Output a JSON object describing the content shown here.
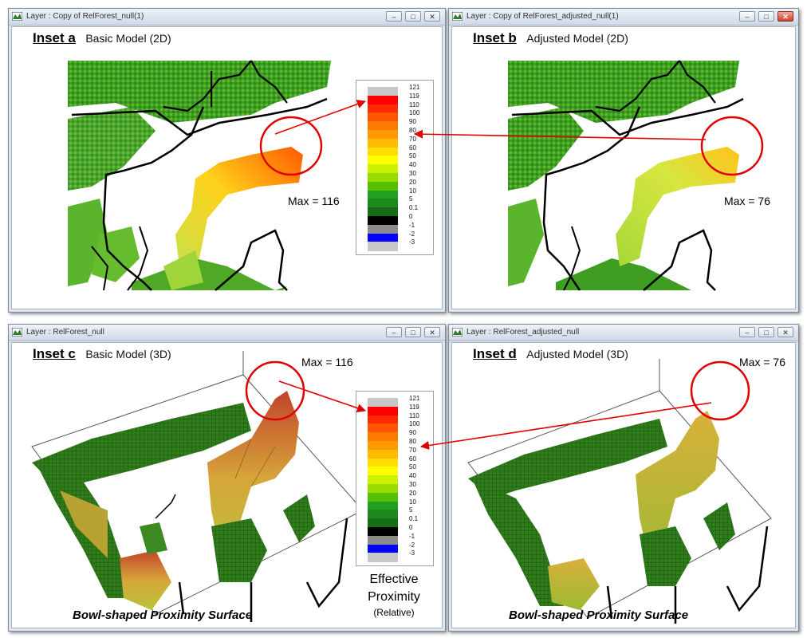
{
  "windows": {
    "a": {
      "title": "Layer : Copy of RelForest_null(1)",
      "inset": "Inset a",
      "subtitle": "Basic Model (2D)",
      "max": "Max = 116"
    },
    "b": {
      "title": "Layer : Copy of RelForest_adjusted_null(1)",
      "inset": "Inset b",
      "subtitle": "Adjusted Model (2D)",
      "max": "Max = 76"
    },
    "c": {
      "title": "Layer : RelForest_null",
      "inset": "Inset c",
      "subtitle": "Basic Model (3D)",
      "max": "Max = 116",
      "caption": "Bowl-shaped Proximity Surface"
    },
    "d": {
      "title": "Layer : RelForest_adjusted_null",
      "inset": "Inset d",
      "subtitle": "Adjusted Model (3D)",
      "max": "Max = 76",
      "caption": "Bowl-shaped Proximity Surface"
    }
  },
  "controls": {
    "minimize": "–",
    "maximize": "□",
    "close": "✕"
  },
  "legend": {
    "ticks": [
      "121",
      "119",
      "110",
      "100",
      "90",
      "80",
      "70",
      "60",
      "50",
      "40",
      "30",
      "20",
      "10",
      "5",
      "0.1",
      "0",
      "-1",
      "-2",
      "-3"
    ],
    "colors": [
      "#c8c8c8",
      "#ff0000",
      "#ff2a00",
      "#ff5500",
      "#ff7a00",
      "#ff9a00",
      "#ffbb00",
      "#ffdd00",
      "#ffff00",
      "#ccf000",
      "#99dd00",
      "#55c000",
      "#22a020",
      "#1e8a1e",
      "#156e15",
      "#000000",
      "#8c8c8c",
      "#0000ff",
      "#c8c8c8"
    ]
  },
  "proximity": {
    "title_line1": "Effective",
    "title_line2": "Proximity",
    "subtitle": "(Relative)"
  },
  "icons": {
    "app": "layer-app-icon",
    "minimize": "minimize-icon",
    "maximize": "maximize-icon",
    "close": "close-icon"
  }
}
